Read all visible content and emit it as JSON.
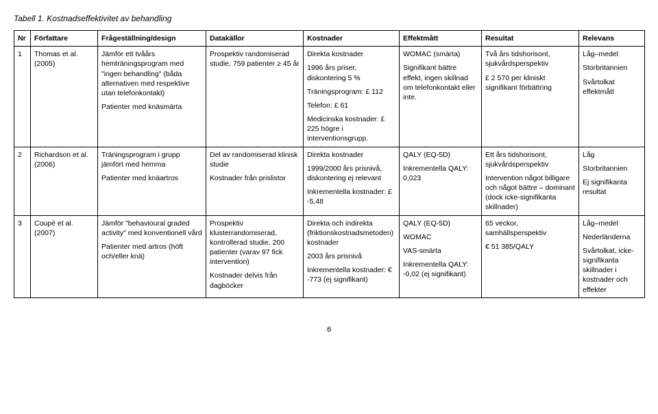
{
  "title": "Tabell 1. Kostnadseffektivitet av behandling",
  "headers": {
    "nr": "Nr",
    "forfattare": "Författare",
    "fragestallning": "Frågeställning/design",
    "datakallor": "Datakällor",
    "kostnader": "Kostnader",
    "effektmatt": "Effektmått",
    "resultat": "Resultat",
    "relevans": "Relevans"
  },
  "rows": [
    {
      "nr": "1",
      "forfattare": "Thomas et al. (2005)",
      "fragestallning_p1": "Jämför ett tvåårs hemträningsprogram med \"ingen behandling\" (båda alternativen med respektive utan telefonkontakt)",
      "fragestallning_p2": "Patienter med knäsmärta",
      "datakallor": "Prospektiv randomiserad studie, 759 patienter ≥ 45 år",
      "kostnader_p1": "Direkta kostnader",
      "kostnader_p2": "1996 års priser, diskontering 5 %",
      "kostnader_p3": "Träningsprogram: £ 112",
      "kostnader_p4": "Telefon: £ 61",
      "kostnader_p5": "Medicinska kostnader: £ 225 högre i interventionsgrupp.",
      "effektmatt_p1": "WOMAC (smärta)",
      "effektmatt_p2": "Signifikant bättre effekt, ingen skillnad om telefonkontakt eller inte.",
      "resultat_p1": "Två års tidshorisont, sjukvårdsperspektiv",
      "resultat_p2": "£ 2 570 per kliniskt signifikant förbättring",
      "relevans_p1": "Låg–medel",
      "relevans_p2": "Storbritannien",
      "relevans_p3": "Svårtolkat effektmått"
    },
    {
      "nr": "2",
      "forfattare": "Richardson et al. (2006)",
      "fragestallning_p1": "Träningsprogram i grupp jämfört med hemma",
      "fragestallning_p2": "Patienter med knäartros",
      "datakallor_p1": "Del av randomiserad klinisk studie",
      "datakallor_p2": "Kostnader från prislistor",
      "kostnader_p1": "Direkta kostnader",
      "kostnader_p2": "1999/2000 års prisnivå, diskontering ej relevant",
      "kostnader_p3": "Inkrementella kostnader: £ -5,48",
      "effektmatt_p1": "QALY (EQ-5D)",
      "effektmatt_p2": "Inkrementella QALY: 0,023",
      "resultat_p1": "Ett års tidshorisont, sjukvårdsperspektiv",
      "resultat_p2": "Intervention något billigare och något bättre – dominant (dock icke-signifikanta skillnader)",
      "relevans_p1": "Låg",
      "relevans_p2": "Storbritannien",
      "relevans_p3": "Ej signifikanta resultat"
    },
    {
      "nr": "3",
      "forfattare": "Coupé et al. (2007)",
      "fragestallning_p1": "Jämför \"behavioural graded activity\" med konventionell vård",
      "fragestallning_p2": "Patienter med artros (höft och/eller knä)",
      "datakallor_p1": "Prospektiv klusterrandomiserad, kontrollerad studie. 200 patienter (varav 97 fick intervention)",
      "datakallor_p2": "Kostnader delvis från dagböcker",
      "kostnader_p1": "Direkta och indirekta (friktionskostnadsmetoden) kostnader",
      "kostnader_p2": "2003 års prisnivå",
      "kostnader_p3": "Inkrementella kostnader: € -773 (ej signifikant)",
      "effektmatt_p1": "QALY (EQ-5D)",
      "effektmatt_p2": "WOMAC",
      "effektmatt_p3": "VAS-smärta",
      "effektmatt_p4": "Inkrementella QALY: -0,02 (ej signifikant)",
      "resultat_p1": "65 veckor, samhällsperspektiv",
      "resultat_p2": "€ 51 385/QALY",
      "relevans_p1": "Låg–medel",
      "relevans_p2": "Nederländerna",
      "relevans_p3": "Svårtolkat, icke-signifikanta skillnader i kostnader och effekter"
    }
  ],
  "pagenum": "6"
}
